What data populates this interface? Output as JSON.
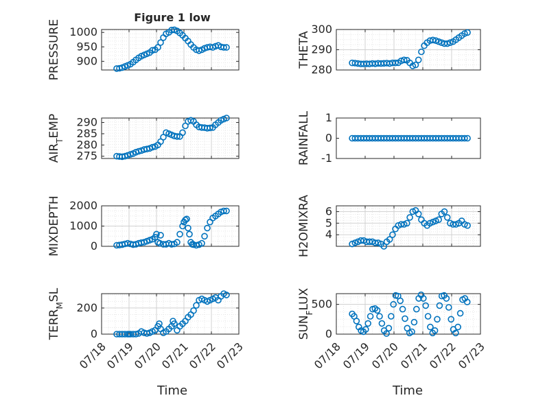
{
  "figure": {
    "title": "Figure 1 low",
    "xlabel": "Time",
    "marker_color": "#0072BD",
    "x_tick_labels": [
      "07/18",
      "07/19",
      "07/20",
      "07/21",
      "07/22",
      "07/23"
    ]
  },
  "chart_data": [
    {
      "type": "scatter",
      "ylabel": "PRESSURE",
      "yticks": [
        900,
        950,
        1000
      ],
      "ylim": [
        870,
        1010
      ],
      "xlim": [
        "07/18",
        "07/23"
      ],
      "grid": true,
      "x": [
        18.55,
        18.65,
        18.75,
        18.85,
        18.95,
        19.05,
        19.15,
        19.25,
        19.35,
        19.45,
        19.55,
        19.65,
        19.75,
        19.85,
        19.95,
        20.05,
        20.15,
        20.25,
        20.35,
        20.45,
        20.55,
        20.65,
        20.75,
        20.85,
        20.95,
        21.05,
        21.15,
        21.25,
        21.35,
        21.45,
        21.55,
        21.65,
        21.75,
        21.85,
        21.95,
        22.05,
        22.15,
        22.25,
        22.35,
        22.45,
        22.55
      ],
      "y": [
        875,
        876,
        878,
        882,
        886,
        890,
        897,
        905,
        912,
        918,
        922,
        926,
        930,
        938,
        940,
        948,
        965,
        982,
        995,
        1000,
        1008,
        1009,
        1005,
        998,
        990,
        980,
        970,
        958,
        948,
        940,
        937,
        940,
        945,
        948,
        950,
        948,
        952,
        955,
        950,
        948,
        948
      ]
    },
    {
      "type": "scatter",
      "ylabel": "THETA",
      "yticks": [
        280,
        290,
        300
      ],
      "ylim": [
        280,
        300
      ],
      "xlim": [
        "07/18",
        "07/23"
      ],
      "grid": true,
      "x": [
        18.55,
        18.65,
        18.75,
        18.85,
        18.95,
        19.05,
        19.15,
        19.25,
        19.35,
        19.45,
        19.55,
        19.65,
        19.75,
        19.85,
        19.95,
        20.05,
        20.15,
        20.25,
        20.35,
        20.45,
        20.55,
        20.65,
        20.75,
        20.85,
        20.95,
        21.05,
        21.15,
        21.25,
        21.35,
        21.45,
        21.55,
        21.65,
        21.75,
        21.85,
        21.95,
        22.05,
        22.15,
        22.25,
        22.35,
        22.45,
        22.55
      ],
      "y": [
        283.5,
        283.4,
        283.2,
        283.0,
        283.0,
        283.1,
        283.0,
        283.2,
        283.1,
        283.3,
        283.2,
        283.3,
        283.4,
        283.2,
        283.5,
        283.5,
        283.6,
        284.5,
        285.0,
        284.8,
        283.5,
        282.0,
        282.5,
        285.0,
        289.0,
        292.0,
        293.5,
        294.5,
        294.8,
        294.5,
        294.0,
        293.5,
        293.0,
        293.0,
        293.5,
        294.0,
        295.0,
        296.0,
        297.0,
        298.0,
        298.5
      ]
    },
    {
      "type": "scatter",
      "ylabel": "AIR_TEMP",
      "yticks": [
        275,
        280,
        285,
        290
      ],
      "ylim": [
        274,
        292
      ],
      "xlim": [
        "07/18",
        "07/23"
      ],
      "grid": true,
      "x": [
        18.55,
        18.65,
        18.75,
        18.85,
        18.95,
        19.05,
        19.15,
        19.25,
        19.35,
        19.45,
        19.55,
        19.65,
        19.75,
        19.85,
        19.95,
        20.05,
        20.15,
        20.25,
        20.35,
        20.45,
        20.55,
        20.65,
        20.75,
        20.85,
        20.95,
        21.05,
        21.15,
        21.25,
        21.35,
        21.45,
        21.55,
        21.65,
        21.75,
        21.85,
        21.95,
        22.05,
        22.15,
        22.25,
        22.35,
        22.45,
        22.55
      ],
      "y": [
        275.0,
        274.9,
        274.8,
        275.0,
        275.4,
        275.8,
        276.2,
        276.8,
        277.2,
        277.5,
        278.0,
        278.2,
        278.5,
        279.0,
        279.3,
        280.0,
        281.5,
        283.5,
        285.5,
        285.0,
        284.5,
        284.0,
        283.8,
        283.8,
        285.5,
        288.5,
        290.5,
        291.0,
        290.5,
        289.0,
        288.0,
        287.8,
        287.7,
        287.5,
        287.6,
        287.8,
        289.0,
        290.0,
        291.0,
        291.5,
        292.0
      ]
    },
    {
      "type": "scatter",
      "ylabel": "RAINFALL",
      "yticks": [
        -1,
        0,
        1
      ],
      "ylim": [
        -1,
        1
      ],
      "xlim": [
        "07/18",
        "07/23"
      ],
      "grid": false,
      "x": [
        18.55,
        18.65,
        18.75,
        18.85,
        18.95,
        19.05,
        19.15,
        19.25,
        19.35,
        19.45,
        19.55,
        19.65,
        19.75,
        19.85,
        19.95,
        20.05,
        20.15,
        20.25,
        20.35,
        20.45,
        20.55,
        20.65,
        20.75,
        20.85,
        20.95,
        21.05,
        21.15,
        21.25,
        21.35,
        21.45,
        21.55,
        21.65,
        21.75,
        21.85,
        21.95,
        22.05,
        22.15,
        22.25,
        22.35,
        22.45,
        22.55
      ],
      "y": [
        0,
        0,
        0,
        0,
        0,
        0,
        0,
        0,
        0,
        0,
        0,
        0,
        0,
        0,
        0,
        0,
        0,
        0,
        0,
        0,
        0,
        0,
        0,
        0,
        0,
        0,
        0,
        0,
        0,
        0,
        0,
        0,
        0,
        0,
        0,
        0,
        0,
        0,
        0,
        0,
        0
      ]
    },
    {
      "type": "scatter",
      "ylabel": "MIXDEPTH",
      "yticks": [
        0,
        1000,
        2000
      ],
      "ylim": [
        0,
        2000
      ],
      "xlim": [
        "07/18",
        "07/23"
      ],
      "grid": true,
      "x": [
        18.55,
        18.65,
        18.75,
        18.85,
        18.95,
        19.05,
        19.15,
        19.25,
        19.35,
        19.45,
        19.55,
        19.65,
        19.75,
        19.85,
        19.95,
        20.0,
        20.05,
        20.12,
        20.15,
        20.25,
        20.35,
        20.45,
        20.55,
        20.65,
        20.75,
        20.85,
        20.95,
        21.0,
        21.05,
        21.1,
        21.15,
        21.2,
        21.25,
        21.3,
        21.35,
        21.45,
        21.55,
        21.65,
        21.75,
        21.85,
        21.95,
        22.05,
        22.15,
        22.25,
        22.35,
        22.45,
        22.55
      ],
      "y": [
        50,
        60,
        80,
        120,
        150,
        120,
        80,
        100,
        150,
        180,
        200,
        250,
        300,
        350,
        450,
        600,
        200,
        150,
        550,
        100,
        100,
        150,
        100,
        120,
        200,
        600,
        1000,
        1200,
        1300,
        1350,
        900,
        600,
        200,
        100,
        80,
        50,
        80,
        150,
        500,
        900,
        1200,
        1400,
        1500,
        1600,
        1700,
        1750,
        1750
      ]
    },
    {
      "type": "scatter",
      "ylabel": "H2OMIXRA",
      "yticks": [
        4,
        5,
        6
      ],
      "ylim": [
        3,
        6.5
      ],
      "xlim": [
        "07/18",
        "07/23"
      ],
      "grid": true,
      "x": [
        18.55,
        18.65,
        18.75,
        18.85,
        18.95,
        19.05,
        19.15,
        19.25,
        19.35,
        19.45,
        19.55,
        19.65,
        19.75,
        19.85,
        19.95,
        20.05,
        20.15,
        20.25,
        20.35,
        20.45,
        20.55,
        20.65,
        20.75,
        20.85,
        20.95,
        21.05,
        21.15,
        21.25,
        21.35,
        21.45,
        21.55,
        21.65,
        21.75,
        21.85,
        21.95,
        22.05,
        22.15,
        22.25,
        22.35,
        22.45,
        22.55
      ],
      "y": [
        3.2,
        3.3,
        3.4,
        3.5,
        3.5,
        3.4,
        3.4,
        3.4,
        3.3,
        3.3,
        3.2,
        3.0,
        3.4,
        3.6,
        4.0,
        4.5,
        4.8,
        4.9,
        4.9,
        5.0,
        5.5,
        6.0,
        6.1,
        5.8,
        5.3,
        5.0,
        4.8,
        5.0,
        5.1,
        5.2,
        5.3,
        5.8,
        6.0,
        5.5,
        5.0,
        4.9,
        4.9,
        5.0,
        5.2,
        4.9,
        4.8
      ]
    },
    {
      "type": "scatter",
      "ylabel": "TERR_MSL",
      "yticks": [
        0,
        200
      ],
      "ylim": [
        0,
        310
      ],
      "xlim": [
        "07/18",
        "07/23"
      ],
      "grid": true,
      "x": [
        18.55,
        18.65,
        18.75,
        18.85,
        18.95,
        19.0,
        19.05,
        19.15,
        19.25,
        19.35,
        19.45,
        19.55,
        19.65,
        19.75,
        19.85,
        19.95,
        20.05,
        20.1,
        20.15,
        20.25,
        20.35,
        20.45,
        20.55,
        20.6,
        20.65,
        20.75,
        20.85,
        20.95,
        21.05,
        21.15,
        21.25,
        21.35,
        21.45,
        21.55,
        21.65,
        21.75,
        21.85,
        21.95,
        22.05,
        22.15,
        22.25,
        22.35,
        22.45,
        22.55
      ],
      "y": [
        0,
        0,
        0,
        0,
        0,
        0,
        0,
        0,
        0,
        5,
        20,
        10,
        5,
        10,
        20,
        30,
        60,
        80,
        40,
        10,
        20,
        40,
        60,
        100,
        80,
        30,
        60,
        80,
        100,
        130,
        150,
        180,
        220,
        260,
        270,
        260,
        250,
        260,
        270,
        280,
        260,
        290,
        310,
        300
      ]
    },
    {
      "type": "scatter",
      "ylabel": "SUN_FLUX",
      "yticks": [
        0,
        500
      ],
      "ylim": [
        0,
        680
      ],
      "xlim": [
        "07/18",
        "07/23"
      ],
      "grid": true,
      "x": [
        18.55,
        18.62,
        18.7,
        18.78,
        18.86,
        18.94,
        19.02,
        19.1,
        19.18,
        19.26,
        19.34,
        19.42,
        19.5,
        19.58,
        19.66,
        19.74,
        19.82,
        19.9,
        19.98,
        20.06,
        20.14,
        20.22,
        20.3,
        20.38,
        20.46,
        20.54,
        20.62,
        20.7,
        20.78,
        20.86,
        20.94,
        21.02,
        21.1,
        21.18,
        21.26,
        21.34,
        21.42,
        21.5,
        21.58,
        21.66,
        21.74,
        21.82,
        21.9,
        21.98,
        22.06,
        22.14,
        22.22,
        22.3,
        22.38,
        22.46,
        22.54
      ],
      "y": [
        340,
        300,
        220,
        120,
        60,
        40,
        80,
        180,
        300,
        420,
        430,
        400,
        300,
        180,
        60,
        10,
        100,
        300,
        500,
        650,
        640,
        560,
        420,
        260,
        100,
        20,
        40,
        200,
        420,
        600,
        660,
        600,
        480,
        300,
        120,
        20,
        60,
        250,
        480,
        640,
        650,
        600,
        450,
        250,
        80,
        20,
        120,
        350,
        580,
        600,
        540
      ]
    }
  ]
}
